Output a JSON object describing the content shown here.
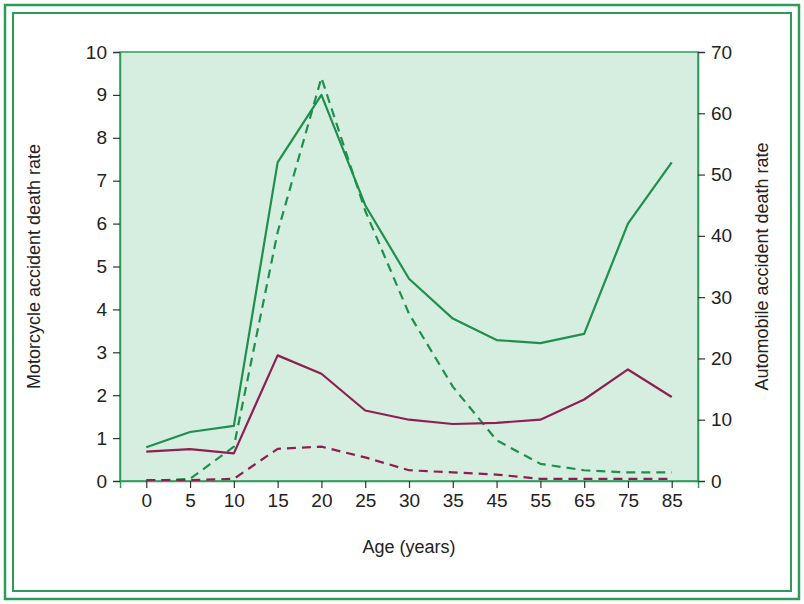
{
  "chart_data": {
    "type": "line",
    "x_label": "Age (years)",
    "y_label": "Motorcycle accident death rate",
    "y2_label": "Automobile accident death rate",
    "categories": [
      0,
      5,
      10,
      15,
      20,
      25,
      30,
      35,
      45,
      55,
      65,
      75,
      85
    ],
    "ylim": [
      0,
      10
    ],
    "yticks": [
      0,
      1,
      2,
      3,
      4,
      5,
      6,
      7,
      8,
      9,
      10
    ],
    "y2lim": [
      0,
      70
    ],
    "y2ticks": [
      0,
      10,
      20,
      30,
      40,
      50,
      60,
      70
    ],
    "series": [
      {
        "color": "#1f8f4e",
        "line_style": "solid",
        "axis": "y2",
        "values": [
          5.5,
          8,
          9,
          52,
          63,
          45,
          33,
          26.5,
          23,
          22.5,
          24,
          42,
          52
        ]
      },
      {
        "color": "#1f8f4e",
        "line_style": "dashed",
        "values": [
          0,
          0.05,
          0.8,
          5.8,
          9.4,
          6.3,
          3.9,
          2.2,
          0.95,
          0.4,
          0.25,
          0.2,
          0.2
        ]
      },
      {
        "color": "#8e1f52",
        "line_style": "solid",
        "axis": "y2",
        "values": [
          4.8,
          5.2,
          4.5,
          20.5,
          17.5,
          11.5,
          10,
          9.3,
          9.5,
          10,
          13.3,
          18.2,
          13.7
        ]
      },
      {
        "color": "#8e1f52",
        "line_style": "dashed",
        "values": [
          0.02,
          0.02,
          0.05,
          0.75,
          0.8,
          0.55,
          0.25,
          0.2,
          0.15,
          0.05,
          0.05,
          0.05,
          0.05
        ]
      }
    ]
  }
}
